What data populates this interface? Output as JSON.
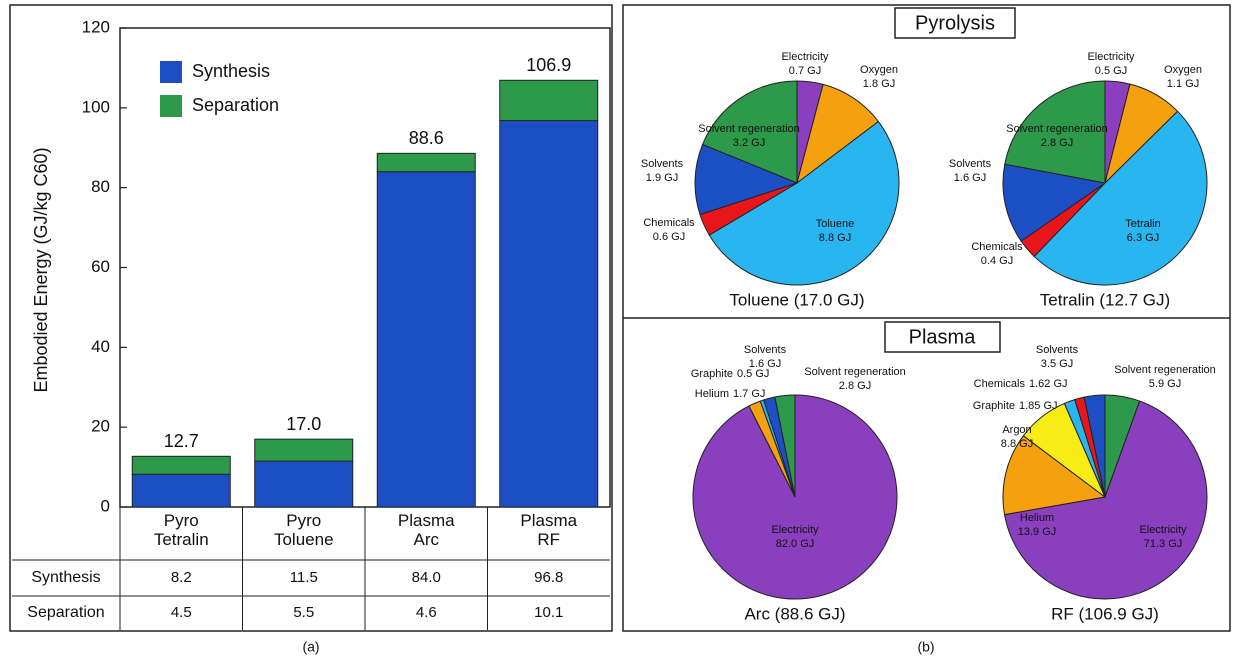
{
  "captions": [
    "(a)",
    "(b)"
  ],
  "section_titles": [
    "Pyrolysis",
    "Plasma"
  ],
  "chart_data": [
    {
      "type": "bar",
      "stacked": true,
      "ylabel": "Embodied Energy (GJ/kg C60)",
      "categories": [
        "Pyro Tetralin",
        "Pyro Toluene",
        "Plasma Arc",
        "Plasma RF"
      ],
      "series": [
        {
          "name": "Synthesis",
          "color": "#1d4fc4",
          "values": [
            8.2,
            11.5,
            84.0,
            96.8
          ],
          "value_labels": [
            "8.2",
            "11.5",
            "84.0",
            "96.8"
          ]
        },
        {
          "name": "Separation",
          "color": "#2c9a4a",
          "values": [
            4.5,
            5.5,
            4.6,
            10.1
          ],
          "value_labels": [
            "4.5",
            "5.5",
            "4.6",
            "10.1"
          ]
        }
      ],
      "total_labels": [
        "12.7",
        "17.0",
        "88.6",
        "106.9"
      ],
      "ylim": [
        0,
        120
      ],
      "yticks": [
        0,
        20,
        40,
        60,
        80,
        100,
        120
      ],
      "legend": "upper left"
    },
    {
      "type": "pie",
      "title": "Toluene (17.0 GJ)",
      "labels": [
        "Electricity",
        "Oxygen",
        "Toluene",
        "Chemicals",
        "Solvents",
        "Solvent regeneration"
      ],
      "values": [
        0.7,
        1.8,
        8.8,
        0.6,
        1.9,
        3.2
      ],
      "value_labels": [
        "0.7 GJ",
        "1.8 GJ",
        "8.8 GJ",
        "0.6 GJ",
        "1.9 GJ",
        "3.2 GJ"
      ],
      "colors": [
        "#8a3fbf",
        "#f5a00f",
        "#29b6f0",
        "#e8161b",
        "#1d4fc4",
        "#2c9a4a"
      ]
    },
    {
      "type": "pie",
      "title": "Tetralin (12.7 GJ)",
      "labels": [
        "Electricity",
        "Oxygen",
        "Tetralin",
        "Chemicals",
        "Solvents",
        "Solvent regeneration"
      ],
      "values": [
        0.5,
        1.1,
        6.3,
        0.4,
        1.6,
        2.8
      ],
      "value_labels": [
        "0.5 GJ",
        "1.1 GJ",
        "6.3 GJ",
        "0.4 GJ",
        "1.6 GJ",
        "2.8 GJ"
      ],
      "colors": [
        "#8a3fbf",
        "#f5a00f",
        "#29b6f0",
        "#e8161b",
        "#1d4fc4",
        "#2c9a4a"
      ]
    },
    {
      "type": "pie",
      "title": "Arc (88.6 GJ)",
      "labels": [
        "Electricity",
        "Helium",
        "Graphite",
        "Solvents",
        "Solvent regeneration"
      ],
      "values": [
        82.0,
        1.7,
        0.5,
        1.6,
        2.8
      ],
      "value_labels": [
        "82.0 GJ",
        "1.7 GJ",
        "0.5 GJ",
        "1.6 GJ",
        "2.8 GJ"
      ],
      "colors": [
        "#8a3fbf",
        "#f5a00f",
        "#29b6f0",
        "#1d4fc4",
        "#2c9a4a"
      ]
    },
    {
      "type": "pie",
      "title": "RF (106.9 GJ)",
      "labels": [
        "Solvent regeneration",
        "Electricity",
        "Helium",
        "Argon",
        "Graphite",
        "Chemicals",
        "Solvents"
      ],
      "values": [
        5.9,
        71.3,
        13.9,
        8.8,
        1.85,
        1.62,
        3.5
      ],
      "value_labels": [
        "5.9 GJ",
        "71.3 GJ",
        "13.9 GJ",
        "8.8 GJ",
        "1.85 GJ",
        "1.62 GJ",
        "3.5 GJ"
      ],
      "colors": [
        "#2c9a4a",
        "#8a3fbf",
        "#f5a00f",
        "#f7ec16",
        "#29b6f0",
        "#e8161b",
        "#1d4fc4"
      ]
    }
  ]
}
